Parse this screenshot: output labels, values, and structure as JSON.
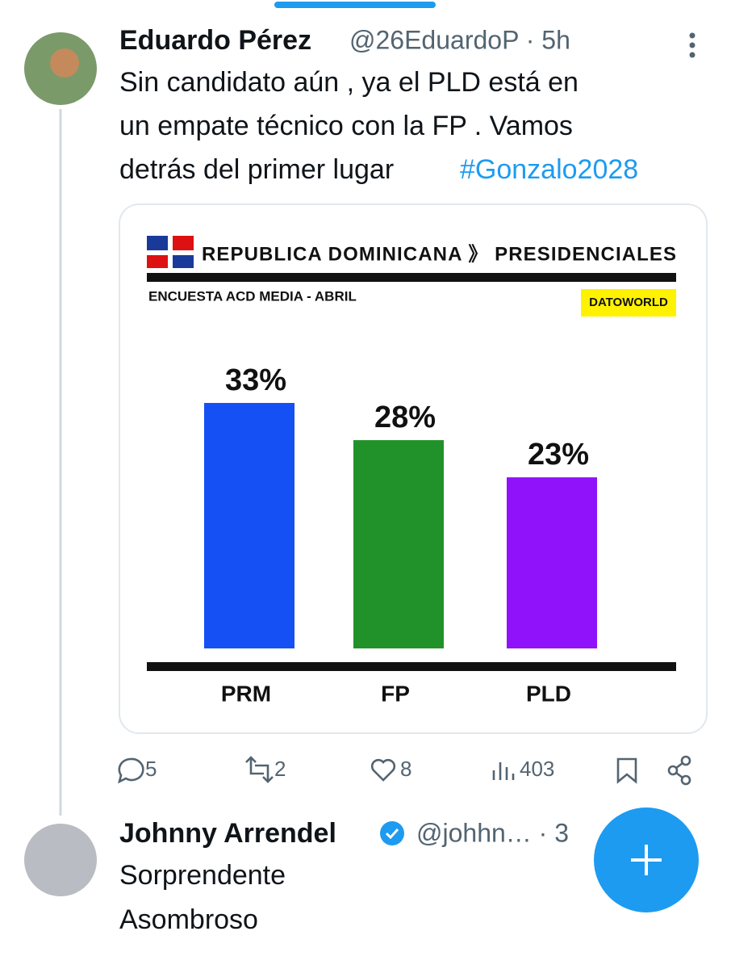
{
  "tweet": {
    "name": "Eduardo Pérez",
    "meta": "@26EduardoP · 5h",
    "text_lines": [
      "Sin candidato aún , ya el PLD está en",
      "un empate técnico con la FP . Vamos",
      "detrás del primer lugar"
    ],
    "hashtag": "#Gonzalo2028",
    "stats": {
      "replies": "5",
      "retweets": "2",
      "likes": "8",
      "views": "403"
    }
  },
  "chart_data": {
    "type": "bar",
    "title": "REPUBLICA DOMINICANA 》 PRESIDENCIALES",
    "subtitle": "ENCUESTA ACD MEDIA - ABRIL",
    "source": "DATOWORLD",
    "categories": [
      "PRM",
      "FP",
      "PLD"
    ],
    "values": [
      33,
      28,
      23
    ],
    "value_labels": [
      "33%",
      "28%",
      "23%"
    ],
    "colors": [
      "#1550f5",
      "#21922a",
      "#9012fa"
    ]
  },
  "reply": {
    "name": "Johnny Arrendel",
    "meta": "@johhn… · 3",
    "text_lines": [
      "Sorprendente",
      "Asombroso"
    ]
  }
}
